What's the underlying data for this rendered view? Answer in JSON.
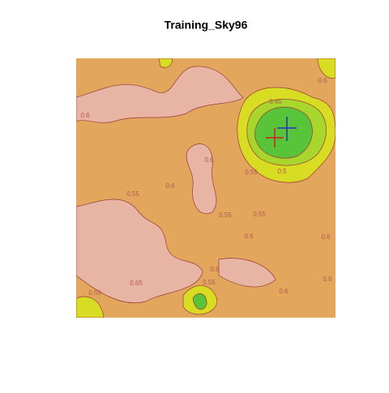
{
  "chart_data": {
    "type": "contour",
    "title": "Training_Sky96",
    "levels": [
      0.45,
      0.5,
      0.55,
      0.6,
      0.65
    ],
    "colors": [
      "#58c43a",
      "#a8d62c",
      "#d8dc22",
      "#e2a65c",
      "#e8b4a4"
    ],
    "contour_labels": [
      0.6,
      0.6,
      0.45,
      0.5,
      0.55,
      0.6,
      0.6,
      0.55,
      0.55,
      0.55,
      0.6,
      0.6,
      0.6,
      0.65,
      0.55,
      0.55,
      0.6,
      0.6
    ]
  }
}
